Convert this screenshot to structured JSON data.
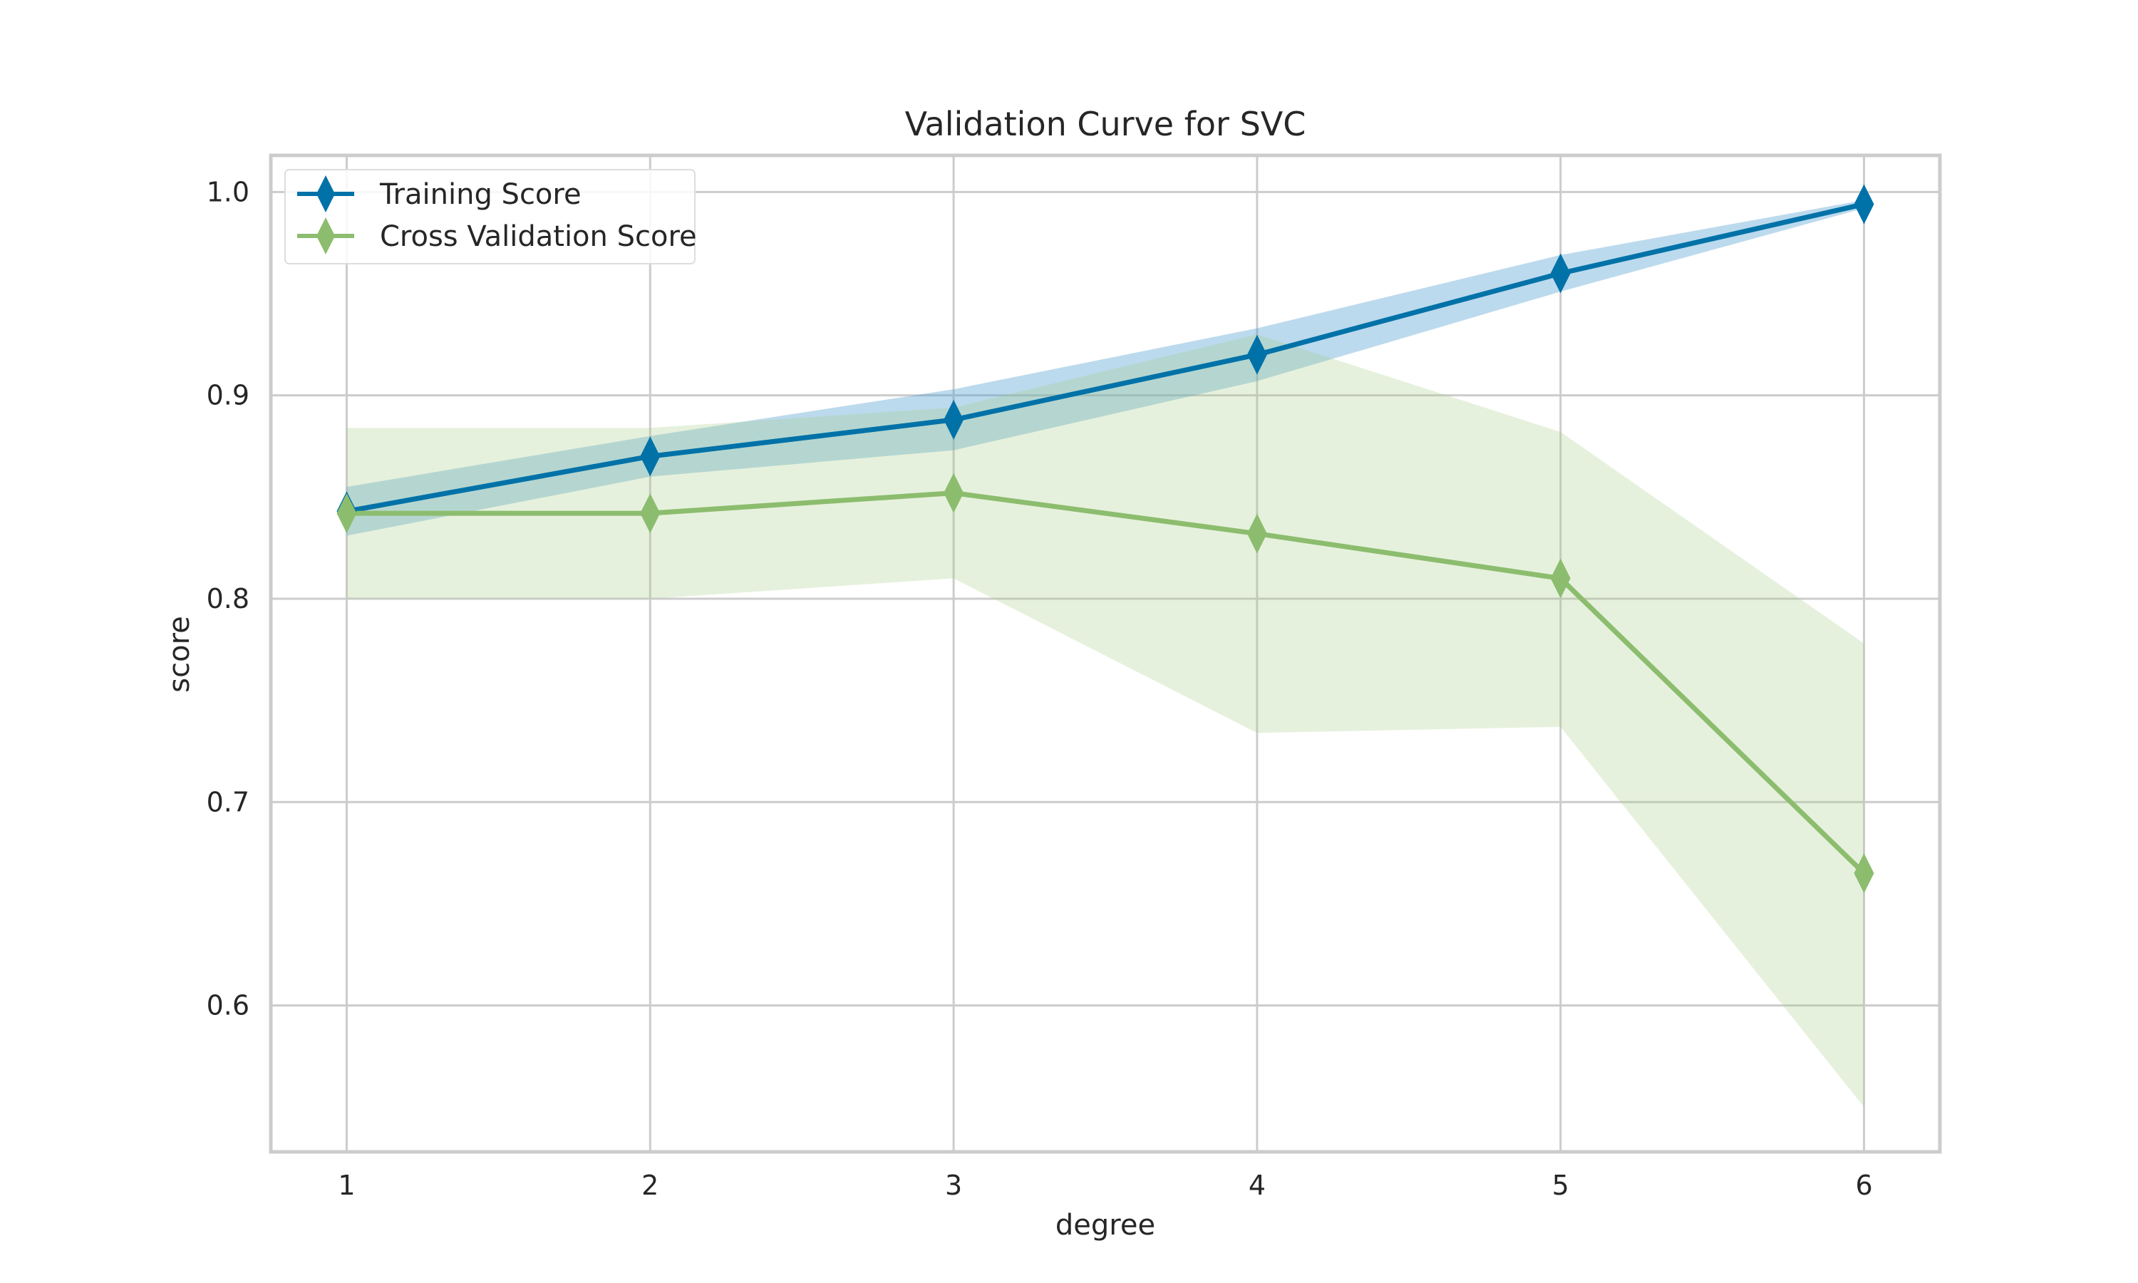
{
  "chart_data": {
    "type": "line",
    "title": "Validation Curve for SVC",
    "xlabel": "degree",
    "ylabel": "score",
    "x": [
      1,
      2,
      3,
      4,
      5,
      6
    ],
    "xlim": [
      0.75,
      6.25
    ],
    "ylim": [
      0.528,
      1.018
    ],
    "xticks": [
      1,
      2,
      3,
      4,
      5,
      6
    ],
    "yticks": [
      0.6,
      0.7,
      0.8,
      0.9,
      1.0
    ],
    "ytick_labels": [
      "0.6",
      "0.7",
      "0.8",
      "0.9",
      "1.0"
    ],
    "grid": true,
    "legend_position": "top-left",
    "series": [
      {
        "name": "Training Score",
        "color": "#0072a8",
        "band_color": "#4f9fd0",
        "values": [
          0.843,
          0.87,
          0.888,
          0.92,
          0.96,
          0.994
        ],
        "lower": [
          0.831,
          0.86,
          0.873,
          0.907,
          0.951,
          0.992
        ],
        "upper": [
          0.855,
          0.88,
          0.903,
          0.933,
          0.969,
          0.996
        ]
      },
      {
        "name": "Cross Validation Score",
        "color": "#8cbd6e",
        "band_color": "#a5cb86",
        "values": [
          0.842,
          0.842,
          0.852,
          0.832,
          0.81,
          0.665
        ],
        "lower": [
          0.8,
          0.8,
          0.81,
          0.734,
          0.737,
          0.55
        ],
        "upper": [
          0.884,
          0.884,
          0.894,
          0.93,
          0.882,
          0.778
        ]
      }
    ]
  }
}
